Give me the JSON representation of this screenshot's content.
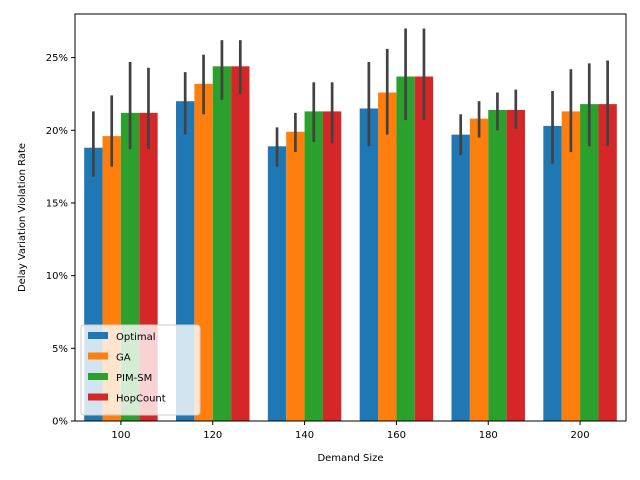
{
  "chart_data": {
    "type": "bar",
    "title": "",
    "xlabel": "Demand Size",
    "ylabel": "Delay Variation Violation Rate",
    "categories": [
      "100",
      "120",
      "140",
      "160",
      "180",
      "200"
    ],
    "y_ticks": [
      "0%",
      "5%",
      "10%",
      "15%",
      "20%",
      "25%"
    ],
    "ylim": [
      0,
      0.28
    ],
    "grid": false,
    "legend_position": "lower-left",
    "series": [
      {
        "name": "Optimal",
        "color": "#1f77b4",
        "values": [
          0.188,
          0.22,
          0.189,
          0.215,
          0.197,
          0.203
        ],
        "err_low": [
          0.168,
          0.197,
          0.175,
          0.189,
          0.183,
          0.177
        ],
        "err_high": [
          0.213,
          0.24,
          0.202,
          0.247,
          0.211,
          0.227
        ]
      },
      {
        "name": "GA",
        "color": "#ff7f0e",
        "values": [
          0.196,
          0.232,
          0.199,
          0.226,
          0.208,
          0.213
        ],
        "err_low": [
          0.175,
          0.211,
          0.185,
          0.197,
          0.195,
          0.185
        ],
        "err_high": [
          0.224,
          0.252,
          0.212,
          0.256,
          0.22,
          0.242
        ]
      },
      {
        "name": "PIM-SM",
        "color": "#2ca02c",
        "values": [
          0.212,
          0.244,
          0.213,
          0.237,
          0.214,
          0.218
        ],
        "err_low": [
          0.187,
          0.221,
          0.192,
          0.207,
          0.2,
          0.189
        ],
        "err_high": [
          0.247,
          0.262,
          0.233,
          0.27,
          0.226,
          0.246
        ]
      },
      {
        "name": "HopCount",
        "color": "#d62728",
        "values": [
          0.212,
          0.244,
          0.213,
          0.237,
          0.214,
          0.218
        ],
        "err_low": [
          0.187,
          0.225,
          0.191,
          0.207,
          0.201,
          0.189
        ],
        "err_high": [
          0.243,
          0.262,
          0.233,
          0.27,
          0.228,
          0.248
        ]
      }
    ]
  }
}
